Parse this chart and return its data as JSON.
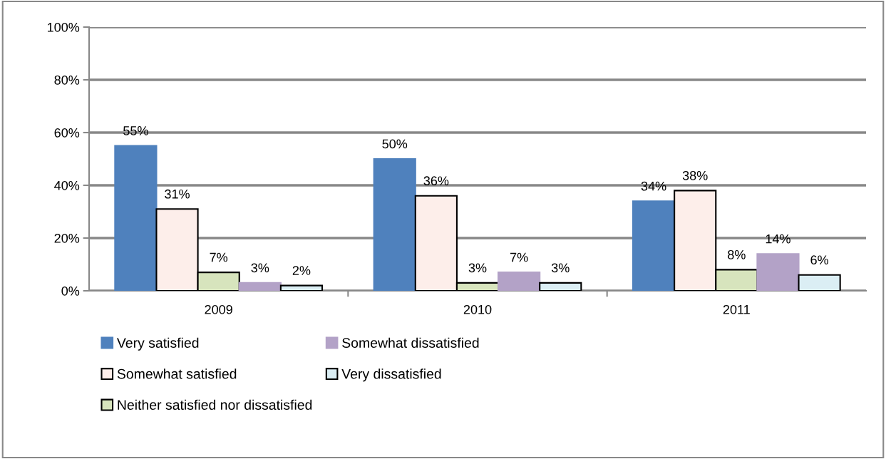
{
  "chart_data": {
    "type": "bar",
    "categories": [
      "2009",
      "2010",
      "2011"
    ],
    "series": [
      {
        "name": "Very satisfied",
        "color": "#4f81bd",
        "values": [
          55,
          50,
          34
        ],
        "value_labels": [
          "55%",
          "50%",
          "34%"
        ]
      },
      {
        "name": "Somewhat satisfied",
        "color": "#fdeeea",
        "values": [
          31,
          36,
          38
        ],
        "value_labels": [
          "31%",
          "36%",
          "38%"
        ]
      },
      {
        "name": "Neither satisfied nor dissatisfied",
        "color": "#d7e4bd",
        "values": [
          7,
          3,
          8
        ],
        "value_labels": [
          "7%",
          "3%",
          "8%"
        ]
      },
      {
        "name": "Somewhat dissatisfied",
        "color": "#b3a2c7",
        "values": [
          3,
          7,
          14
        ],
        "value_labels": [
          "3%",
          "7%",
          "14%"
        ]
      },
      {
        "name": "Very dissatisfied",
        "color": "#dbeef4",
        "values": [
          2,
          3,
          6
        ],
        "value_labels": [
          "2%",
          "3%",
          "6%"
        ]
      }
    ],
    "ylim": [
      0,
      100
    ],
    "yticks": [
      {
        "value": 0,
        "label": "0%"
      },
      {
        "value": 20,
        "label": "20%"
      },
      {
        "value": 40,
        "label": "40%"
      },
      {
        "value": 60,
        "label": "60%"
      },
      {
        "value": 80,
        "label": "80%"
      },
      {
        "value": 100,
        "label": "100%"
      }
    ],
    "grid": "y",
    "legend": "bottom"
  }
}
